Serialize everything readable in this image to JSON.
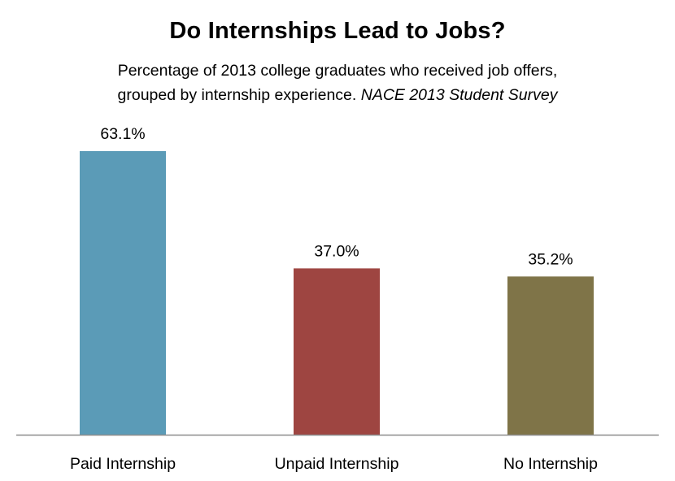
{
  "chart_data": {
    "type": "bar",
    "title": "Do Internships Lead to Jobs?",
    "subtitle_line1": "Percentage of 2013 college graduates who received job offers,",
    "subtitle_line2_prefix": "grouped by internship experience.",
    "subtitle_source": "NACE 2013 Student Survey",
    "categories": [
      "Paid Internship",
      "Unpaid Internship",
      "No Internship"
    ],
    "values": [
      63.1,
      37.0,
      35.2
    ],
    "value_labels": [
      "63.1%",
      "37.0%",
      "35.2%"
    ],
    "colors": [
      "#5b9bb7",
      "#9e4541",
      "#7f7448"
    ],
    "ylim": [
      0,
      100
    ],
    "grid": false,
    "legend": "none",
    "xlabel": "",
    "ylabel": ""
  }
}
